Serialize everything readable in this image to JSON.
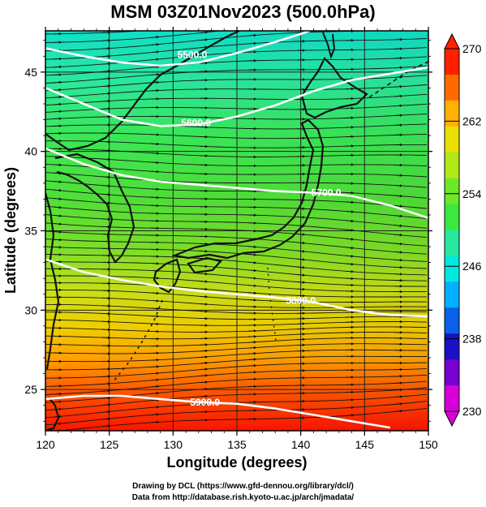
{
  "title": "MSM 03Z01Nov2023 (500.0hPa)",
  "credits": {
    "line1": "Drawing by DCL (https://www.gfd-dennou.org/library/dcl/)",
    "line2": "Data from http://database.rish.kyoto-u.ac.jp/arch/jmadata/"
  },
  "map": {
    "xlabel": "Longitude (degrees)",
    "ylabel": "Latitude  (degrees)",
    "xlim": [
      120,
      150
    ],
    "ylim": [
      22.4,
      47.6
    ],
    "xticks": [
      "120",
      "125",
      "130",
      "135",
      "140",
      "145",
      "150"
    ],
    "yticks": [
      "25",
      "30",
      "35",
      "40",
      "45"
    ],
    "contours": [
      {
        "label": "5500.0",
        "value": 5500,
        "label_pos": [
          131.5,
          46.1
        ],
        "points": [
          [
            120,
            46.5
          ],
          [
            123,
            46.0
          ],
          [
            126,
            45.6
          ],
          [
            129,
            45.4
          ],
          [
            132,
            45.6
          ],
          [
            135,
            46.2
          ],
          [
            138,
            46.9
          ],
          [
            140,
            47.4
          ],
          [
            142,
            48.0
          ]
        ]
      },
      {
        "label": "5600.0",
        "value": 5600,
        "label_pos": [
          131.8,
          41.8
        ],
        "points": [
          [
            120,
            44.0
          ],
          [
            123,
            43.0
          ],
          [
            126,
            42.0
          ],
          [
            129,
            41.6
          ],
          [
            132,
            41.7
          ],
          [
            135,
            42.2
          ],
          [
            138,
            42.9
          ],
          [
            141,
            43.8
          ],
          [
            144,
            44.5
          ],
          [
            147,
            44.9
          ],
          [
            150,
            45.3
          ]
        ]
      },
      {
        "label": "5700.0",
        "value": 5700,
        "label_pos": [
          142,
          37.4
        ],
        "points": [
          [
            120,
            40.2
          ],
          [
            123,
            39.2
          ],
          [
            126,
            38.5
          ],
          [
            129,
            38.1
          ],
          [
            132,
            37.9
          ],
          [
            135,
            37.7
          ],
          [
            138,
            37.5
          ],
          [
            141,
            37.4
          ],
          [
            144,
            37.2
          ],
          [
            147,
            36.6
          ],
          [
            150,
            35.8
          ]
        ]
      },
      {
        "label": "5800.0",
        "value": 5800,
        "label_pos": [
          140,
          30.6
        ],
        "points": [
          [
            120,
            33.2
          ],
          [
            123,
            32.4
          ],
          [
            126,
            31.9
          ],
          [
            129,
            31.5
          ],
          [
            132,
            31.2
          ],
          [
            135,
            31.0
          ],
          [
            138,
            30.8
          ],
          [
            141,
            30.5
          ],
          [
            144,
            30.0
          ],
          [
            147,
            29.7
          ],
          [
            150,
            29.6
          ]
        ]
      },
      {
        "label": "5900.0",
        "value": 5900,
        "label_pos": [
          132.5,
          24.2
        ],
        "points": [
          [
            120,
            24.4
          ],
          [
            123,
            24.6
          ],
          [
            126,
            24.6
          ],
          [
            129,
            24.4
          ],
          [
            132,
            24.2
          ],
          [
            135,
            24.1
          ],
          [
            138,
            23.8
          ],
          [
            141,
            23.4
          ],
          [
            144,
            23.0
          ],
          [
            147,
            22.6
          ]
        ]
      }
    ]
  },
  "colorbar": {
    "min": 230,
    "max": 270,
    "ticks": [
      "270",
      "262",
      "254",
      "246",
      "238",
      "230"
    ],
    "colors": [
      "#d600d8",
      "#7800d0",
      "#1a10c8",
      "#0a60e8",
      "#00b0ff",
      "#00e8e0",
      "#28e8a0",
      "#3ae840",
      "#6ce828",
      "#b0e818",
      "#e8e000",
      "#ffb000",
      "#ff6a00",
      "#ff2000"
    ]
  },
  "field_colors": {
    "stops": [
      [
        0.0,
        "#10e0c8"
      ],
      [
        0.12,
        "#2ae8a0"
      ],
      [
        0.26,
        "#3ae858"
      ],
      [
        0.42,
        "#50e038"
      ],
      [
        0.55,
        "#7ee028"
      ],
      [
        0.65,
        "#c8e018"
      ],
      [
        0.74,
        "#f0d000"
      ],
      [
        0.82,
        "#ffa000"
      ],
      [
        0.9,
        "#ff5800"
      ],
      [
        1.0,
        "#ff1400"
      ]
    ]
  }
}
